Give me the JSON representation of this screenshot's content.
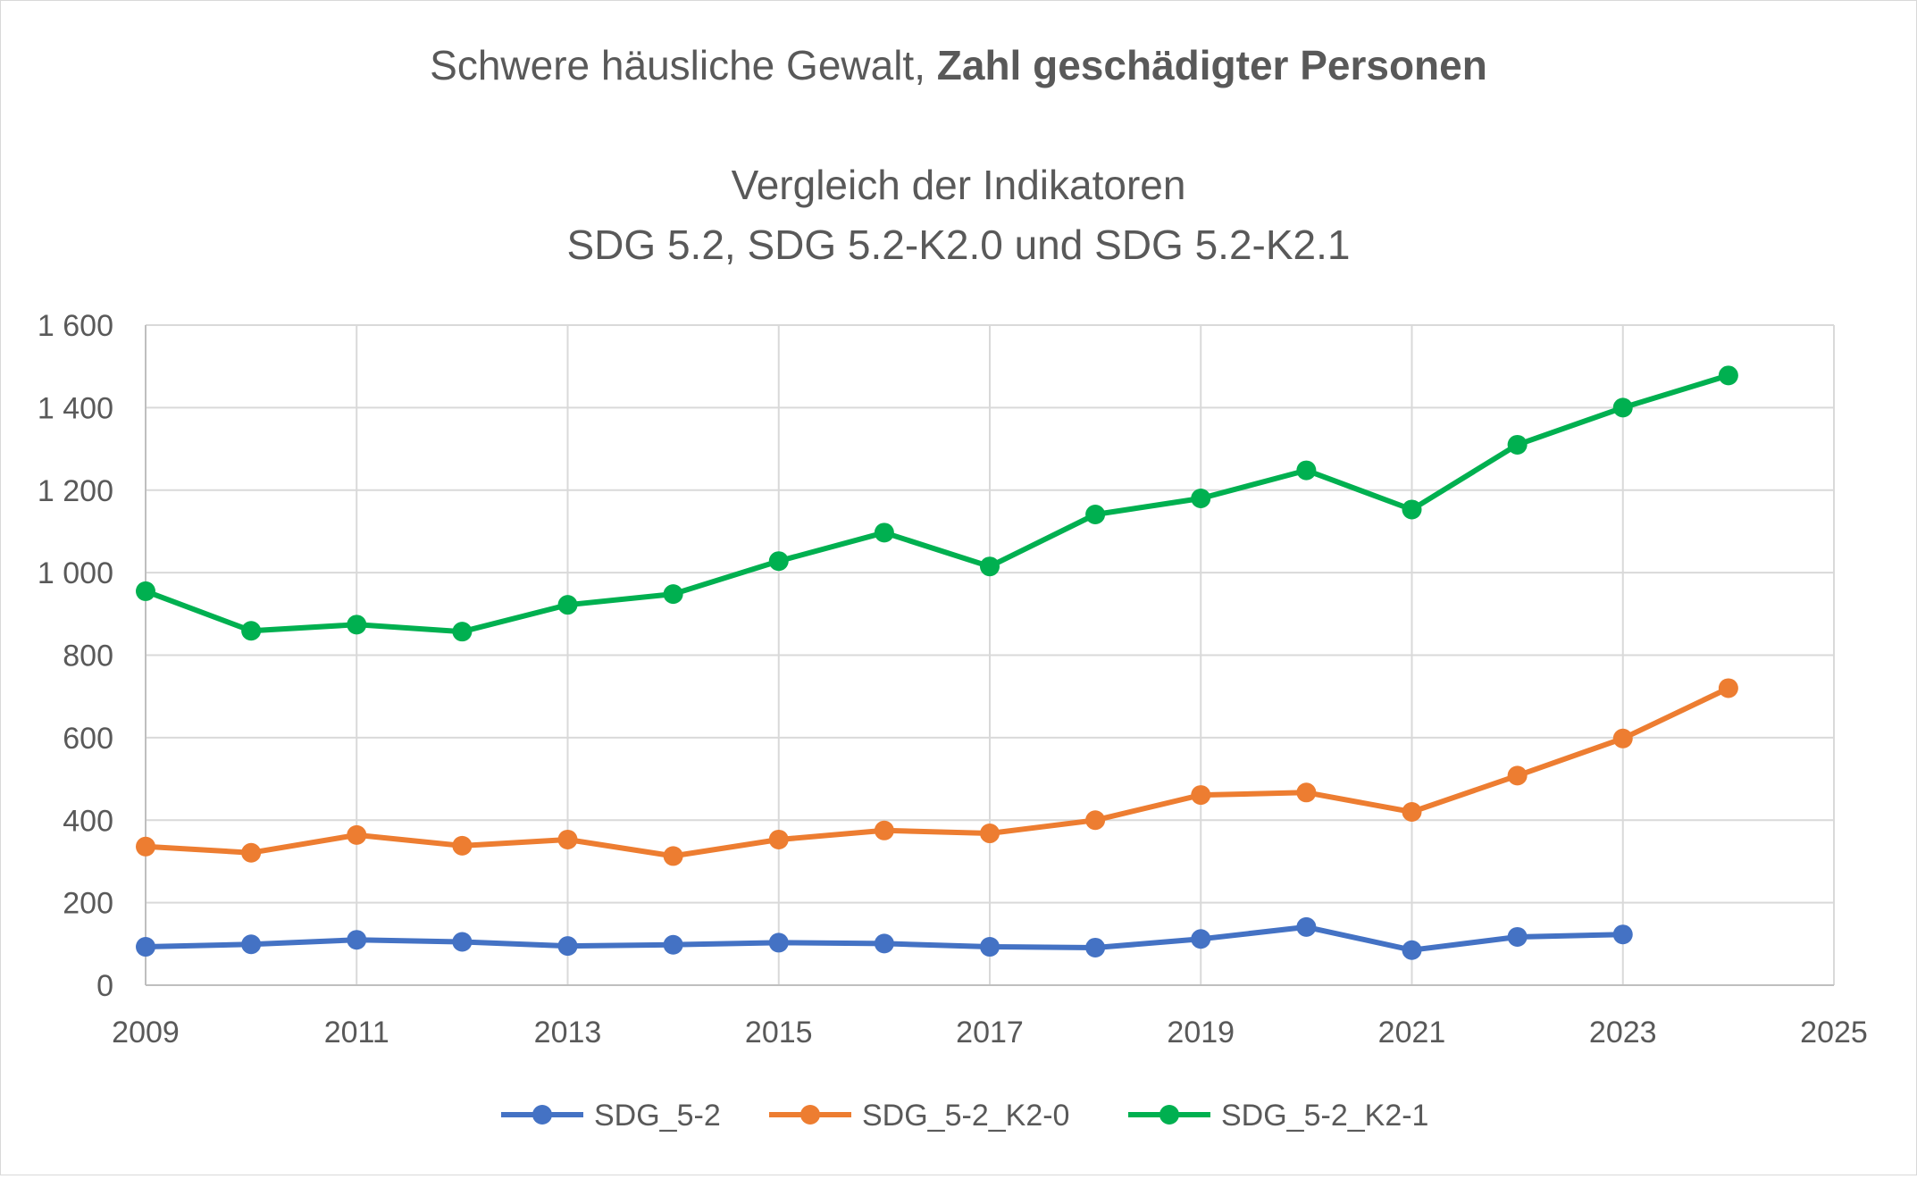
{
  "chart_data": {
    "type": "line",
    "title": {
      "line1_regular": "Schwere häusliche Gewalt, ",
      "line1_bold": "Zahl geschädigter Personen",
      "line2": "Vergleich der Indikatoren",
      "line3": "SDG 5.2, SDG 5.2-K2.0 und SDG 5.2-K2.1"
    },
    "x_axis": {
      "range": [
        2009,
        2025
      ],
      "ticks": [
        2009,
        2011,
        2013,
        2015,
        2017,
        2019,
        2021,
        2023,
        2025
      ],
      "tick_labels": [
        "2009",
        "2011",
        "2013",
        "2015",
        "2017",
        "2019",
        "2021",
        "2023",
        "2025"
      ]
    },
    "y_axis": {
      "range": [
        0,
        1600
      ],
      "ticks": [
        0,
        200,
        400,
        600,
        800,
        1000,
        1200,
        1400,
        1600
      ],
      "tick_labels": [
        "0",
        "200",
        "400",
        "600",
        "800",
        "1 000",
        "1 200",
        "1 400",
        "1 600"
      ]
    },
    "grid": true,
    "legend_position": "bottom",
    "series": [
      {
        "name": "SDG_5-2",
        "color": "#4472c4",
        "x": [
          2009,
          2010,
          2011,
          2012,
          2013,
          2014,
          2015,
          2016,
          2017,
          2018,
          2019,
          2020,
          2021,
          2022,
          2023
        ],
        "y": [
          93,
          99,
          110,
          105,
          95,
          98,
          103,
          101,
          93,
          91,
          112,
          141,
          85,
          117,
          123
        ]
      },
      {
        "name": "SDG_5-2_K2-0",
        "color": "#ed7d31",
        "x": [
          2009,
          2010,
          2011,
          2012,
          2013,
          2014,
          2015,
          2016,
          2017,
          2018,
          2019,
          2020,
          2021,
          2022,
          2023,
          2024
        ],
        "y": [
          336,
          321,
          364,
          338,
          353,
          313,
          353,
          375,
          368,
          400,
          461,
          467,
          420,
          508,
          598,
          720
        ]
      },
      {
        "name": "SDG_5-2_K2-1",
        "color": "#00b050",
        "x": [
          2009,
          2010,
          2011,
          2012,
          2013,
          2014,
          2015,
          2016,
          2017,
          2018,
          2019,
          2020,
          2021,
          2022,
          2023,
          2024
        ],
        "y": [
          955,
          859,
          874,
          857,
          922,
          948,
          1028,
          1097,
          1015,
          1141,
          1180,
          1248,
          1153,
          1310,
          1400,
          1478
        ]
      }
    ]
  }
}
